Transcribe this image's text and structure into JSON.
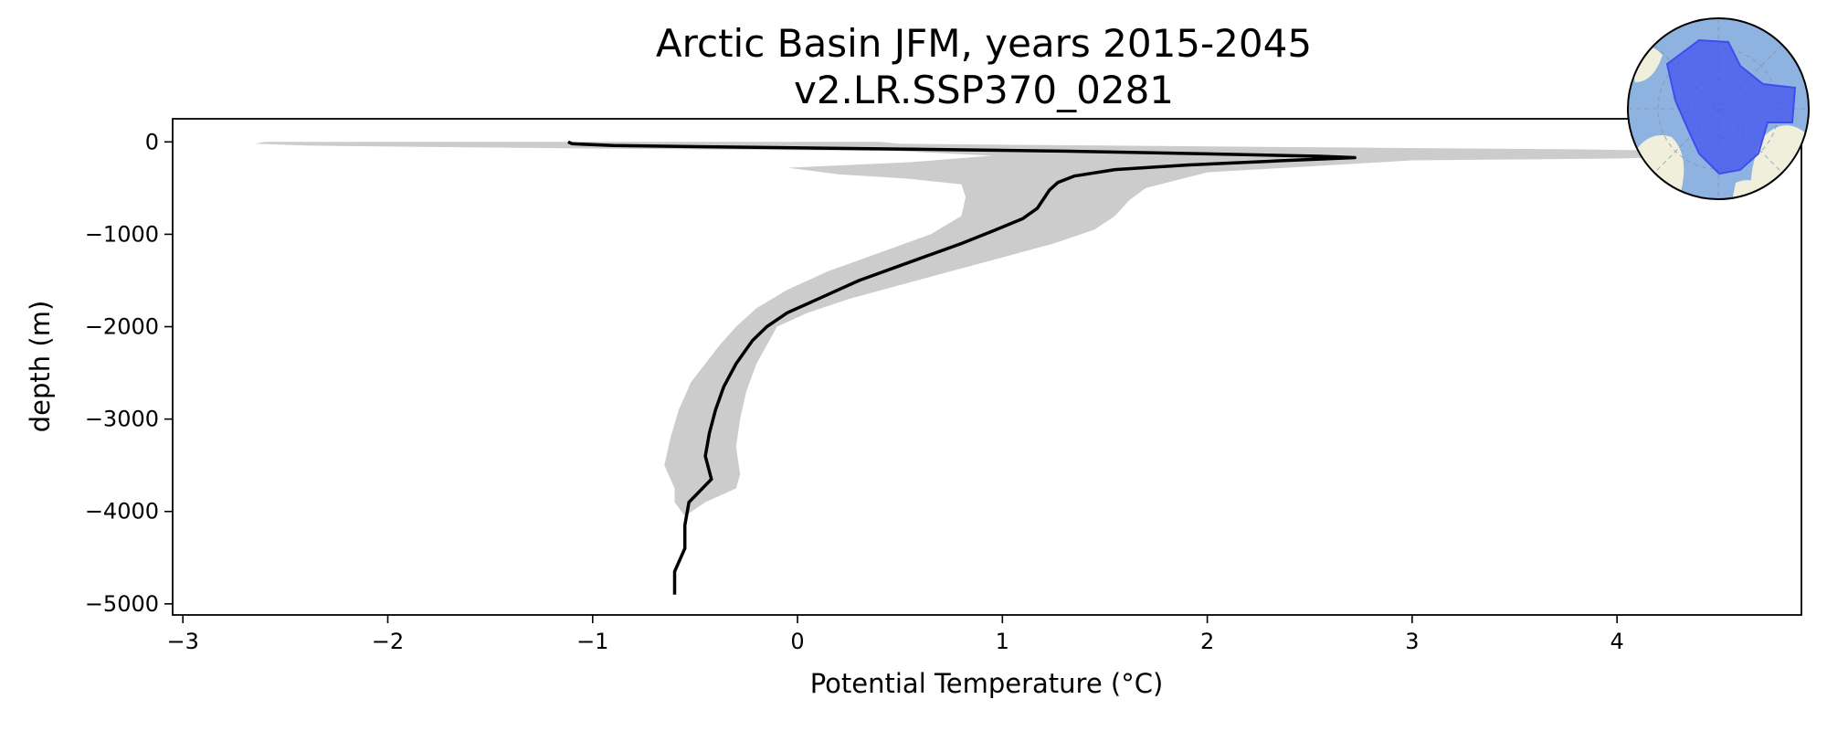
{
  "chart_data": {
    "type": "line",
    "title": "Arctic Basin JFM, years 2015-2045",
    "subtitle": "v2.LR.SSP370_0281",
    "xlabel": "Potential Temperature (°C)",
    "ylabel": "depth (m)",
    "xlim": [
      -3.05,
      4.9
    ],
    "ylim": [
      -5120,
      250
    ],
    "xticks": [
      -3,
      -2,
      -1,
      0,
      1,
      2,
      3,
      4
    ],
    "xtick_labels": [
      "−3",
      "−2",
      "−1",
      "0",
      "1",
      "2",
      "3",
      "4"
    ],
    "yticks": [
      0,
      -1000,
      -2000,
      -3000,
      -4000,
      -5000
    ],
    "ytick_labels": [
      "0",
      "−1000",
      "−2000",
      "−3000",
      "−4000",
      "−5000"
    ],
    "grid": false,
    "colors": {
      "mean_line": "#000000",
      "band": "#cccccc",
      "region_fill": "#3d4df0",
      "land": "#efefdc",
      "ocean": "#8fb3e0"
    },
    "series": [
      {
        "kind": "line",
        "points": [
          [
            -1.12,
            0
          ],
          [
            -1.1,
            -20
          ],
          [
            -0.9,
            -40
          ],
          [
            -0.2,
            -60
          ],
          [
            0.6,
            -80
          ],
          [
            1.3,
            -100
          ],
          [
            2.0,
            -130
          ],
          [
            2.55,
            -155
          ],
          [
            2.72,
            -170
          ],
          [
            2.4,
            -200
          ],
          [
            1.9,
            -250
          ],
          [
            1.55,
            -300
          ],
          [
            1.35,
            -370
          ],
          [
            1.27,
            -440
          ],
          [
            1.23,
            -520
          ],
          [
            1.2,
            -620
          ],
          [
            1.17,
            -720
          ],
          [
            1.1,
            -830
          ],
          [
            0.97,
            -950
          ],
          [
            0.8,
            -1100
          ],
          [
            0.55,
            -1300
          ],
          [
            0.3,
            -1500
          ],
          [
            0.1,
            -1700
          ],
          [
            -0.05,
            -1850
          ],
          [
            -0.15,
            -2000
          ],
          [
            -0.22,
            -2150
          ],
          [
            -0.3,
            -2400
          ],
          [
            -0.36,
            -2650
          ],
          [
            -0.4,
            -2900
          ],
          [
            -0.43,
            -3150
          ],
          [
            -0.45,
            -3400
          ],
          [
            -0.42,
            -3650
          ],
          [
            -0.53,
            -3900
          ],
          [
            -0.55,
            -4150
          ],
          [
            -0.55,
            -4400
          ],
          [
            -0.6,
            -4650
          ],
          [
            -0.6,
            -4900
          ]
        ]
      },
      {
        "kind": "band",
        "lower": [
          [
            -2.6,
            0
          ],
          [
            -2.65,
            -20
          ],
          [
            -2.4,
            -40
          ],
          [
            -1.6,
            -60
          ],
          [
            -0.5,
            -80
          ],
          [
            0.5,
            -100
          ],
          [
            0.95,
            -150
          ],
          [
            0.55,
            -220
          ],
          [
            -0.05,
            -280
          ],
          [
            0.2,
            -350
          ],
          [
            0.55,
            -400
          ],
          [
            0.8,
            -460
          ],
          [
            0.82,
            -600
          ],
          [
            0.8,
            -800
          ],
          [
            0.65,
            -1000
          ],
          [
            0.4,
            -1200
          ],
          [
            0.15,
            -1400
          ],
          [
            -0.05,
            -1600
          ],
          [
            -0.2,
            -1800
          ],
          [
            -0.3,
            -2000
          ],
          [
            -0.38,
            -2200
          ],
          [
            -0.45,
            -2400
          ],
          [
            -0.52,
            -2600
          ],
          [
            -0.58,
            -2900
          ],
          [
            -0.62,
            -3200
          ],
          [
            -0.65,
            -3500
          ],
          [
            -0.6,
            -3750
          ],
          [
            -0.6,
            -3900
          ],
          [
            -0.55,
            -4050
          ]
        ],
        "upper": [
          [
            0.4,
            0
          ],
          [
            0.5,
            -20
          ],
          [
            1.5,
            -40
          ],
          [
            2.6,
            -60
          ],
          [
            3.8,
            -80
          ],
          [
            4.4,
            -100
          ],
          [
            4.5,
            -150
          ],
          [
            4.0,
            -180
          ],
          [
            3.0,
            -200
          ],
          [
            2.0,
            -330
          ],
          [
            1.7,
            -500
          ],
          [
            1.62,
            -630
          ],
          [
            1.55,
            -800
          ],
          [
            1.45,
            -950
          ],
          [
            1.25,
            -1100
          ],
          [
            1.0,
            -1250
          ],
          [
            0.75,
            -1400
          ],
          [
            0.5,
            -1550
          ],
          [
            0.25,
            -1700
          ],
          [
            0.05,
            -1850
          ],
          [
            -0.1,
            -2000
          ],
          [
            -0.15,
            -2200
          ],
          [
            -0.2,
            -2400
          ],
          [
            -0.25,
            -2700
          ],
          [
            -0.28,
            -3000
          ],
          [
            -0.3,
            -3300
          ],
          [
            -0.28,
            -3600
          ],
          [
            -0.3,
            -3750
          ],
          [
            -0.45,
            -3900
          ],
          [
            -0.55,
            -4050
          ]
        ]
      }
    ]
  }
}
